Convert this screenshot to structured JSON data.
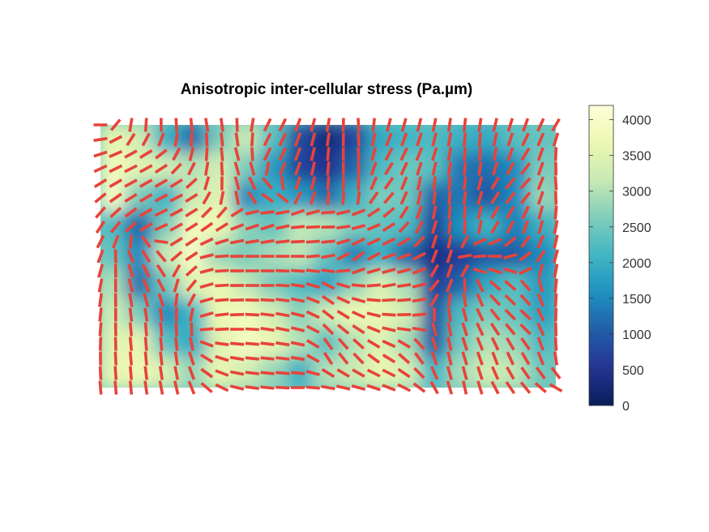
{
  "chart_data": {
    "type": "heatmap",
    "title": "Anisotropic inter-cellular stress (Pa.µm)",
    "xlabel": "",
    "ylabel": "",
    "axes_visible": false,
    "colormap": "YlGnBu",
    "colorbar": {
      "location": "right",
      "range": [
        0,
        4200
      ],
      "ticks": [
        0,
        500,
        1000,
        1500,
        2000,
        2500,
        3000,
        3500,
        4000
      ],
      "tick_labels": [
        "0",
        "500",
        "1000",
        "1500",
        "2000",
        "2500",
        "3000",
        "3500",
        "4000"
      ]
    },
    "grid_note": "stress magnitude field with overlaid orientation line segments (red, headless quiver)",
    "values": [
      [
        3600,
        3300,
        2000,
        1200,
        2600,
        3200,
        2300,
        800,
        300,
        700,
        1900,
        2100,
        2200,
        2000,
        1900,
        2300,
        2400
      ],
      [
        3800,
        3500,
        3300,
        3000,
        3300,
        2600,
        1700,
        700,
        500,
        1100,
        2200,
        2500,
        2300,
        1300,
        1200,
        1500,
        2600
      ],
      [
        3900,
        2600,
        2000,
        3200,
        3500,
        1500,
        2000,
        1700,
        1200,
        2000,
        2600,
        2500,
        1100,
        1300,
        900,
        1500,
        2800
      ],
      [
        2200,
        1100,
        2600,
        3800,
        3700,
        2700,
        2400,
        3100,
        3000,
        2600,
        2400,
        2200,
        700,
        1600,
        2100,
        1400,
        2000
      ],
      [
        2400,
        1500,
        3200,
        3900,
        2800,
        2600,
        2900,
        3100,
        2400,
        1400,
        2000,
        1100,
        400,
        600,
        1000,
        1000,
        1500
      ],
      [
        3000,
        1200,
        2500,
        3500,
        3700,
        3100,
        2600,
        2200,
        1800,
        2700,
        3400,
        2900,
        600,
        1100,
        1900,
        2300,
        1700
      ],
      [
        3300,
        2600,
        1500,
        2100,
        3700,
        3800,
        3300,
        2700,
        3300,
        3700,
        3600,
        3300,
        900,
        2200,
        2600,
        2400,
        1800
      ],
      [
        3500,
        3600,
        2300,
        1900,
        3500,
        3900,
        3600,
        3000,
        2300,
        3000,
        3500,
        2900,
        1000,
        2500,
        3000,
        2800,
        2200
      ],
      [
        3600,
        3700,
        3400,
        2800,
        3600,
        3300,
        2800,
        2000,
        3000,
        3200,
        3600,
        3400,
        2100,
        2900,
        3300,
        3100,
        2500
      ]
    ],
    "orientation_field_deg": [
      [
        0,
        80,
        90,
        95,
        100,
        90,
        60,
        70,
        80,
        95,
        75,
        75,
        80,
        85,
        75,
        70,
        60
      ],
      [
        20,
        25,
        30,
        70,
        90,
        110,
        60,
        70,
        85,
        95,
        60,
        65,
        75,
        90,
        80,
        55,
        90
      ],
      [
        35,
        30,
        30,
        25,
        80,
        110,
        140,
        70,
        85,
        90,
        50,
        80,
        90,
        80,
        50,
        45,
        95
      ],
      [
        55,
        40,
        25,
        30,
        40,
        20,
        20,
        5,
        0,
        10,
        30,
        60,
        80,
        90,
        60,
        75,
        80
      ],
      [
        70,
        110,
        130,
        40,
        5,
        0,
        0,
        0,
        10,
        40,
        20,
        20,
        80,
        5,
        0,
        40,
        75
      ],
      [
        80,
        100,
        120,
        60,
        5,
        0,
        0,
        170,
        150,
        170,
        10,
        5,
        60,
        100,
        140,
        130,
        85
      ],
      [
        85,
        95,
        95,
        90,
        10,
        0,
        170,
        165,
        140,
        150,
        170,
        5,
        100,
        110,
        130,
        140,
        90
      ],
      [
        90,
        95,
        95,
        100,
        160,
        175,
        175,
        170,
        120,
        130,
        150,
        130,
        100,
        110,
        110,
        120,
        95
      ],
      [
        95,
        95,
        100,
        105,
        150,
        170,
        175,
        180,
        170,
        165,
        160,
        150,
        110,
        100,
        120,
        130,
        150
      ]
    ]
  }
}
